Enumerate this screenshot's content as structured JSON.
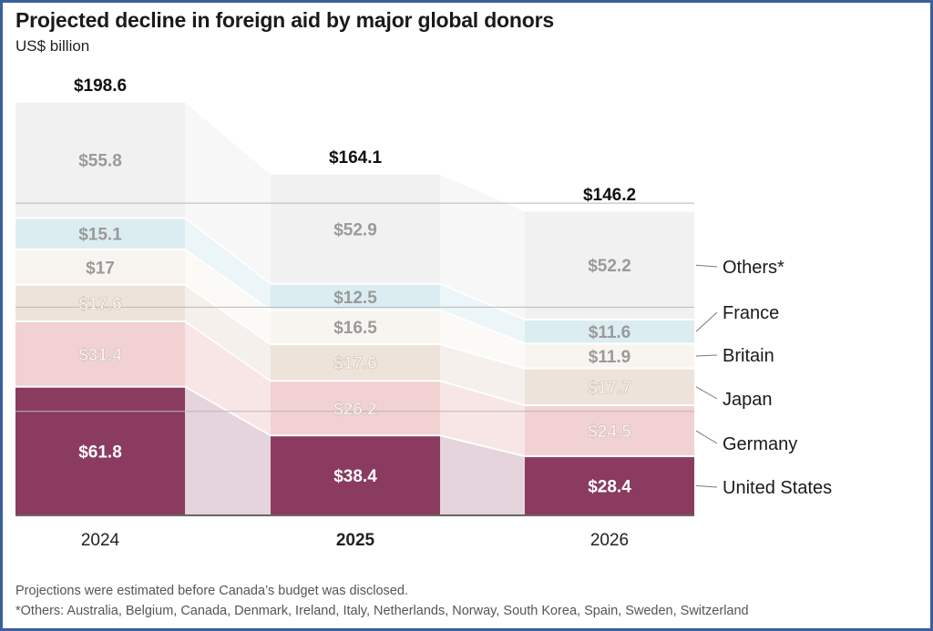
{
  "chart_data": {
    "type": "bar",
    "stacked": true,
    "title": "Projected decline in foreign aid by major global donors",
    "subtitle": "US$ billion",
    "categories": [
      "2024",
      "2025",
      "2026"
    ],
    "highlighted_category": "2025",
    "totals": [
      "$198.6",
      "$164.1",
      "$146.2"
    ],
    "total_values": [
      198.6,
      164.1,
      146.2
    ],
    "ylim": [
      0,
      200
    ],
    "gridlines": [
      50,
      100,
      150
    ],
    "grid": true,
    "legend": "right",
    "series": [
      {
        "name": "United States",
        "values": [
          61.8,
          38.4,
          28.4
        ],
        "labels": [
          "$61.8",
          "$38.4",
          "$28.4"
        ],
        "color": "#8a3b5f",
        "label_color": "#ffffff"
      },
      {
        "name": "Germany",
        "values": [
          31.4,
          26.2,
          24.5
        ],
        "labels": [
          "$31.4",
          "$26.2",
          "$24.5"
        ],
        "color": "#f2d1d2",
        "label_color": "#fbf1f1"
      },
      {
        "name": "Japan",
        "values": [
          17.6,
          17.6,
          17.7
        ],
        "labels": [
          "$17.6",
          "$17.6",
          "$17.7"
        ],
        "color": "#ede3da",
        "label_color": "#faf6f2"
      },
      {
        "name": "Britain",
        "values": [
          17,
          16.5,
          11.9
        ],
        "labels": [
          "$17",
          "$16.5",
          "$11.9"
        ],
        "color": "#f8f5f1",
        "label_color": "#9a9a9a"
      },
      {
        "name": "France",
        "values": [
          15.1,
          12.5,
          11.6
        ],
        "labels": [
          "$15.1",
          "$12.5",
          "$11.6"
        ],
        "color": "#dcedf1",
        "label_color": "#9a9a9a"
      },
      {
        "name": "Others*",
        "values": [
          55.8,
          52.9,
          52.2
        ],
        "labels": [
          "$55.8",
          "$52.9",
          "$52.2"
        ],
        "color": "#f0f1f0",
        "label_color": "#9a9a9a"
      }
    ]
  },
  "footnotes": [
    "Projections were estimated before Canada’s budget was disclosed.",
    "*Others: Australia, Belgium, Canada, Denmark, Ireland, Italy, Netherlands, Norway, South Korea, Spain, Sweden, Switzerland"
  ]
}
